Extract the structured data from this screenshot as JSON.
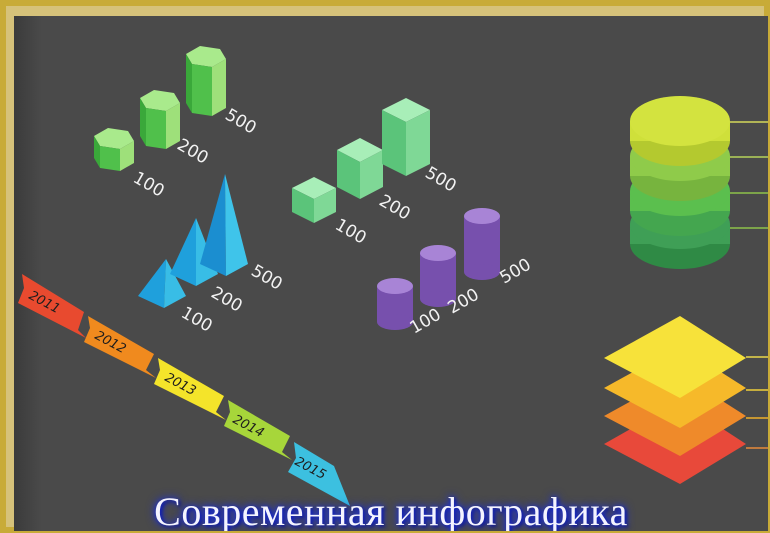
{
  "title": "Современная инфографика",
  "hexagon_prisms": {
    "labels": [
      "100",
      "200",
      "500"
    ],
    "color": "#5fd25a"
  },
  "cubes": {
    "labels": [
      "100",
      "200",
      "500"
    ],
    "color": "#6dd48a"
  },
  "pyramids": {
    "labels": [
      "100",
      "200",
      "500"
    ],
    "color": "#1ca6e0"
  },
  "cylinders": {
    "labels": [
      "100",
      "200",
      "500"
    ],
    "color": "#7a4fb0"
  },
  "timeline": {
    "years": [
      "2011",
      "2012",
      "2013",
      "2014",
      "2015"
    ],
    "colors": [
      "#e84a2f",
      "#f08a1e",
      "#f4e42a",
      "#a7d63a",
      "#3cc0e0"
    ]
  },
  "disc_stack": {
    "colors": [
      "#cfe03a",
      "#8fcb4a",
      "#5bbf4e",
      "#3f9f56"
    ]
  },
  "plate_stack": {
    "colors": [
      "#f7e23a",
      "#f6b92a",
      "#ef8a2a",
      "#e8493a"
    ]
  }
}
